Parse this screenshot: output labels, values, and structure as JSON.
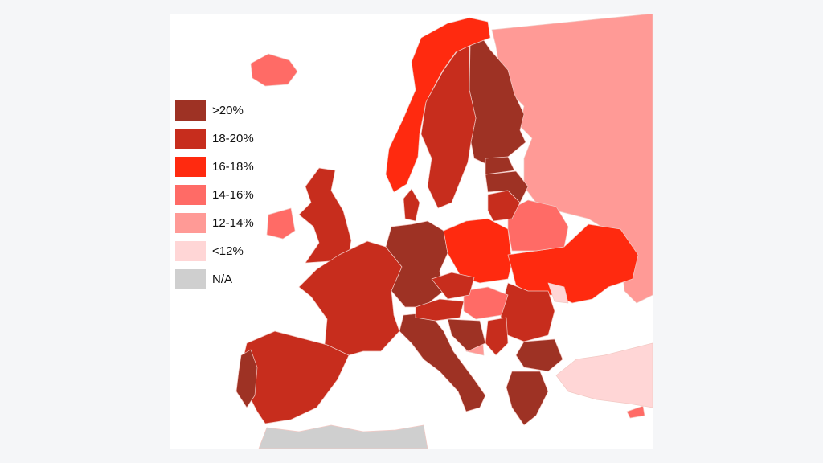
{
  "map": {
    "region": "Europe",
    "colors": {
      "sea": "#ffffff",
      "border": "#f2c9c4",
      "na": "#cfcfcf"
    }
  },
  "legend": {
    "items": [
      {
        "label": ">20%",
        "color": "#9e3224"
      },
      {
        "label": "18-20%",
        "color": "#c72d1d"
      },
      {
        "label": "16-18%",
        "color": "#ff2a0f"
      },
      {
        "label": "14-16%",
        "color": "#ff6b66"
      },
      {
        "label": "12-14%",
        "color": "#ff9a96"
      },
      {
        "label": "<12%",
        "color": "#ffd6d6"
      },
      {
        "label": "N/A",
        "color": "#cfcfcf"
      }
    ]
  },
  "regions": [
    {
      "name": "russia",
      "category": "12-14%"
    },
    {
      "name": "finland",
      "category": ">20%"
    },
    {
      "name": "sweden",
      "category": "18-20%"
    },
    {
      "name": "norway",
      "category": "16-18%"
    },
    {
      "name": "iceland",
      "category": "14-16%"
    },
    {
      "name": "ireland",
      "category": "14-16%"
    },
    {
      "name": "united-kingdom",
      "category": "18-20%"
    },
    {
      "name": "france",
      "category": "18-20%"
    },
    {
      "name": "spain",
      "category": "18-20%"
    },
    {
      "name": "portugal",
      "category": ">20%"
    },
    {
      "name": "germany",
      "category": ">20%"
    },
    {
      "name": "italy",
      "category": ">20%"
    },
    {
      "name": "poland",
      "category": "16-18%"
    },
    {
      "name": "ukraine",
      "category": "16-18%"
    },
    {
      "name": "belarus",
      "category": "14-16%"
    },
    {
      "name": "lithuania",
      "category": "18-20%"
    },
    {
      "name": "latvia",
      "category": ">20%"
    },
    {
      "name": "estonia",
      "category": ">20%"
    },
    {
      "name": "romania",
      "category": "18-20%"
    },
    {
      "name": "bulgaria",
      "category": ">20%"
    },
    {
      "name": "greece",
      "category": ">20%"
    },
    {
      "name": "turkey",
      "category": "<12%"
    },
    {
      "name": "moldova",
      "category": "<12%"
    },
    {
      "name": "hungary",
      "category": "14-16%"
    },
    {
      "name": "czechia",
      "category": "18-20%"
    },
    {
      "name": "austria",
      "category": "18-20%"
    },
    {
      "name": "serbia",
      "category": "18-20%"
    },
    {
      "name": "bosnia",
      "category": "12-14%"
    },
    {
      "name": "croatia",
      "category": ">20%"
    },
    {
      "name": "denmark",
      "category": "18-20%"
    },
    {
      "name": "north-africa",
      "category": "N/A"
    },
    {
      "name": "cyprus",
      "category": "14-16%"
    }
  ]
}
